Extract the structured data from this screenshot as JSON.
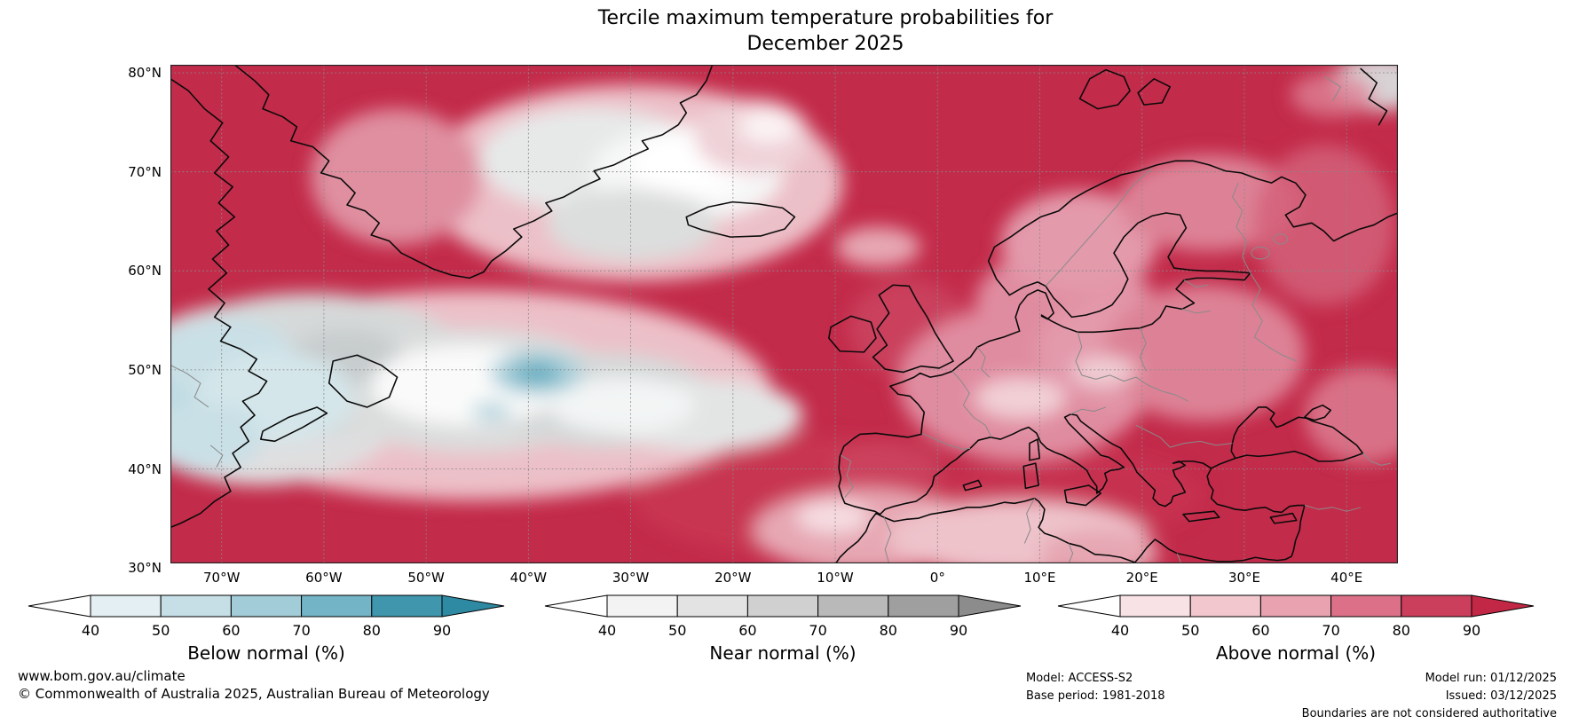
{
  "title": {
    "line1": "Tercile maximum temperature probabilities for",
    "line2": "December 2025"
  },
  "map": {
    "lat_labels": [
      "80°N",
      "70°N",
      "60°N",
      "50°N",
      "40°N",
      "30°N"
    ],
    "lon_labels": [
      "70°W",
      "60°W",
      "50°W",
      "40°W",
      "30°W",
      "20°W",
      "10°W",
      "0°",
      "10°E",
      "20°E",
      "30°E",
      "40°E"
    ]
  },
  "colorbars": [
    {
      "id": "below",
      "label": "Below normal (%)",
      "ticks": [
        "40",
        "50",
        "60",
        "70",
        "80",
        "90"
      ],
      "segment_colors": [
        "#e3eff2",
        "#c6dfe6",
        "#a2ccd7",
        "#73b4c6",
        "#3f96ad"
      ],
      "arrow_color": "#2e89a2",
      "left_arrow_color": "#ffffff"
    },
    {
      "id": "near",
      "label": "Near normal (%)",
      "ticks": [
        "40",
        "50",
        "60",
        "70",
        "80",
        "90"
      ],
      "segment_colors": [
        "#f3f3f3",
        "#e3e3e3",
        "#d0d0d0",
        "#b9b9b9",
        "#9f9f9f"
      ],
      "arrow_color": "#8c8c8c",
      "left_arrow_color": "#ffffff"
    },
    {
      "id": "above",
      "label": "Above normal (%)",
      "ticks": [
        "40",
        "50",
        "60",
        "70",
        "80",
        "90"
      ],
      "segment_colors": [
        "#f8e2e6",
        "#f2c7ce",
        "#e9a2b0",
        "#dd7089",
        "#cc3f5c"
      ],
      "arrow_color": "#c22845",
      "left_arrow_color": "#ffffff"
    }
  ],
  "colors": {
    "field_high_red": "#c32b4a",
    "field_gray": "#d6d9d9",
    "field_blue": "#6cb0c3",
    "coastline": "#0a0a0a",
    "country_border": "#8a8a8a",
    "gridline": "#888888"
  },
  "footer": {
    "website": "www.bom.gov.au/climate",
    "copyright": "© Commonwealth of Australia 2025, Australian Bureau of Meteorology",
    "model": "Model: ACCESS-S2",
    "base_period": "Base period: 1981-2018",
    "model_run": "Model run: 01/12/2025",
    "issued": "Issued: 03/12/2025",
    "disclaimer": "Boundaries are not considered authoritative"
  }
}
